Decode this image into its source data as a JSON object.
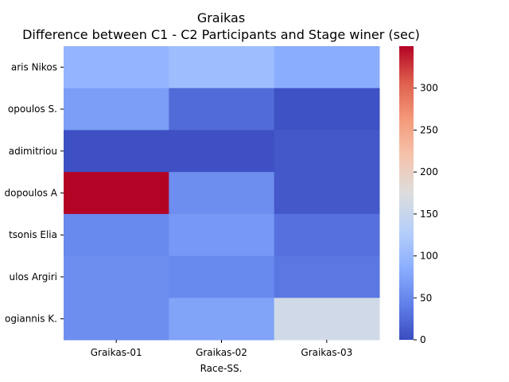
{
  "chart_data": {
    "type": "heatmap",
    "title": "Graikas",
    "subtitle": "Difference between C1 - C2 Participants and Stage winer (sec)",
    "xlabel": "Race-SS.",
    "ylabel": "",
    "columns": [
      "Graikas-01",
      "Graikas-02",
      "Graikas-03"
    ],
    "rows": [
      "aris Nikos",
      "opoulos S.",
      "adimitriou",
      "dopoulos A",
      "tsonis Elia",
      "ulos Argiri",
      "ogiannis K."
    ],
    "values": [
      [
        95,
        105,
        85
      ],
      [
        70,
        25,
        5
      ],
      [
        3,
        3,
        10
      ],
      [
        350,
        55,
        10
      ],
      [
        50,
        65,
        30
      ],
      [
        55,
        50,
        35
      ],
      [
        55,
        75,
        160
      ]
    ],
    "colorbar": {
      "colormap": "coolwarm",
      "min": 0,
      "max": 350,
      "ticks": [
        0,
        50,
        100,
        150,
        200,
        250,
        300
      ]
    }
  }
}
